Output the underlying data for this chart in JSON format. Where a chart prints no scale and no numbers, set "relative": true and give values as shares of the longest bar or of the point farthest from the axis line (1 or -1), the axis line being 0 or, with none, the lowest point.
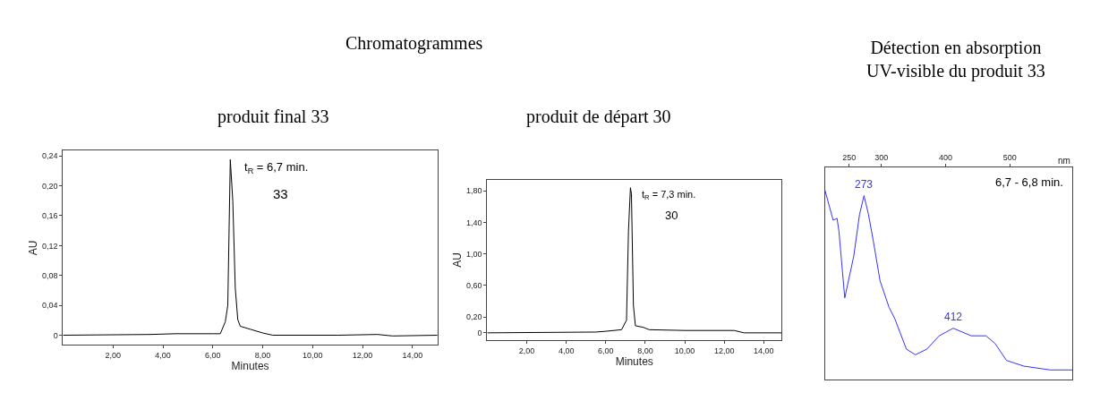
{
  "chart_data": [
    {
      "type": "line",
      "title": "produit final 33",
      "xlabel": "Minutes",
      "ylabel": "AU",
      "annotations": [
        "Chromatogrammes",
        "t$_{R}$ = 6,7 min.",
        "33"
      ],
      "series": [
        {
          "color": "#000000",
          "x": [
            0,
            3.5,
            4.5,
            6.0,
            6.3,
            6.5,
            6.6,
            6.7,
            6.8,
            6.9,
            7.0,
            7.1,
            7.5,
            8.0,
            8.4,
            11,
            12.6,
            13.2,
            15
          ],
          "values": [
            0,
            0.001,
            0.002,
            0.002,
            0.002,
            0.018,
            0.04,
            0.235,
            0.18,
            0.063,
            0.021,
            0.012,
            0.008,
            0.003,
            0,
            0,
            0.001,
            -0.001,
            0
          ]
        }
      ],
      "xlim": [
        0,
        15
      ],
      "ylim": [
        -0.013,
        0.247
      ],
      "xticks": [
        {
          "value": 2,
          "label": "2,00"
        },
        {
          "value": 4,
          "label": "4,00"
        },
        {
          "value": 6,
          "label": "6,00"
        },
        {
          "value": 8,
          "label": "8,00"
        },
        {
          "value": 10,
          "label": "10,00"
        },
        {
          "value": 12,
          "label": "12,00"
        },
        {
          "value": 14,
          "label": "14,00"
        }
      ],
      "yticks": [
        0,
        {
          "value": 0.04,
          "label": "0,04"
        },
        {
          "value": 0.08,
          "label": "0,08"
        },
        {
          "value": 0.12,
          "label": "0,12"
        },
        {
          "value": 0.16,
          "label": "0,16"
        },
        {
          "value": 0.2,
          "label": "0,20"
        },
        {
          "value": 0.24,
          "label": "0,24"
        }
      ]
    },
    {
      "type": "line",
      "title": "produit de départ 30",
      "xlabel": "Minutes",
      "ylabel": "AU",
      "annotations": [
        "t$_{R}$ = 7,3 min.",
        "30"
      ],
      "series": [
        {
          "color": "#000000",
          "x": [
            0,
            5.5,
            6.0,
            6.8,
            7.05,
            7.15,
            7.25,
            7.3,
            7.4,
            7.5,
            7.9,
            8.2,
            10,
            12.5,
            13.0,
            14.9
          ],
          "values": [
            0,
            0.01,
            0.02,
            0.04,
            0.16,
            1.29,
            1.84,
            1.76,
            0.35,
            0.09,
            0.07,
            0.04,
            0.03,
            0.03,
            0,
            0
          ]
        }
      ],
      "xlim": [
        0,
        14.9
      ],
      "ylim": [
        -0.09,
        1.94
      ],
      "xticks": [
        {
          "value": 2,
          "label": "2,00"
        },
        {
          "value": 4,
          "label": "4,00"
        },
        {
          "value": 6,
          "label": "6,00"
        },
        {
          "value": 8,
          "label": "8,00"
        },
        {
          "value": 10,
          "label": "10,00"
        },
        {
          "value": 12,
          "label": "12,00"
        },
        {
          "value": 14,
          "label": "14,00"
        }
      ],
      "yticks": [
        0,
        {
          "value": 0.2,
          "label": "0,20"
        },
        {
          "value": 0.6,
          "label": "0,60"
        },
        {
          "value": 1.0,
          "label": "1,00"
        },
        {
          "value": 1.4,
          "label": "1,40"
        },
        {
          "value": 1.8,
          "label": "1,80"
        }
      ]
    },
    {
      "type": "line",
      "title": "Détection en absorption\nUV-visible du produit 33",
      "xlabel": "nm",
      "relative": true,
      "annotations": [
        "6,7 - 6,8 min.",
        {
          "text": "273",
          "x": 273,
          "y": 0.97
        },
        {
          "text": "412",
          "x": 412,
          "y": 0.27
        }
      ],
      "series": [
        {
          "color": "#3333ff",
          "x": [
            212,
            225,
            231,
            234,
            243,
            257,
            266,
            273,
            280,
            287,
            298,
            312,
            321,
            339,
            353,
            371,
            390,
            412,
            440,
            463,
            477,
            495,
            522,
            563,
            598
          ],
          "values": [
            1.0,
            0.84,
            0.85,
            0.78,
            0.43,
            0.65,
            0.87,
            0.97,
            0.87,
            0.74,
            0.52,
            0.38,
            0.32,
            0.16,
            0.13,
            0.16,
            0.23,
            0.27,
            0.23,
            0.23,
            0.19,
            0.1,
            0.07,
            0.05,
            0.05
          ]
        }
      ],
      "xlim": [
        212,
        598
      ],
      "xticks": [
        250,
        300,
        400,
        500
      ]
    }
  ]
}
